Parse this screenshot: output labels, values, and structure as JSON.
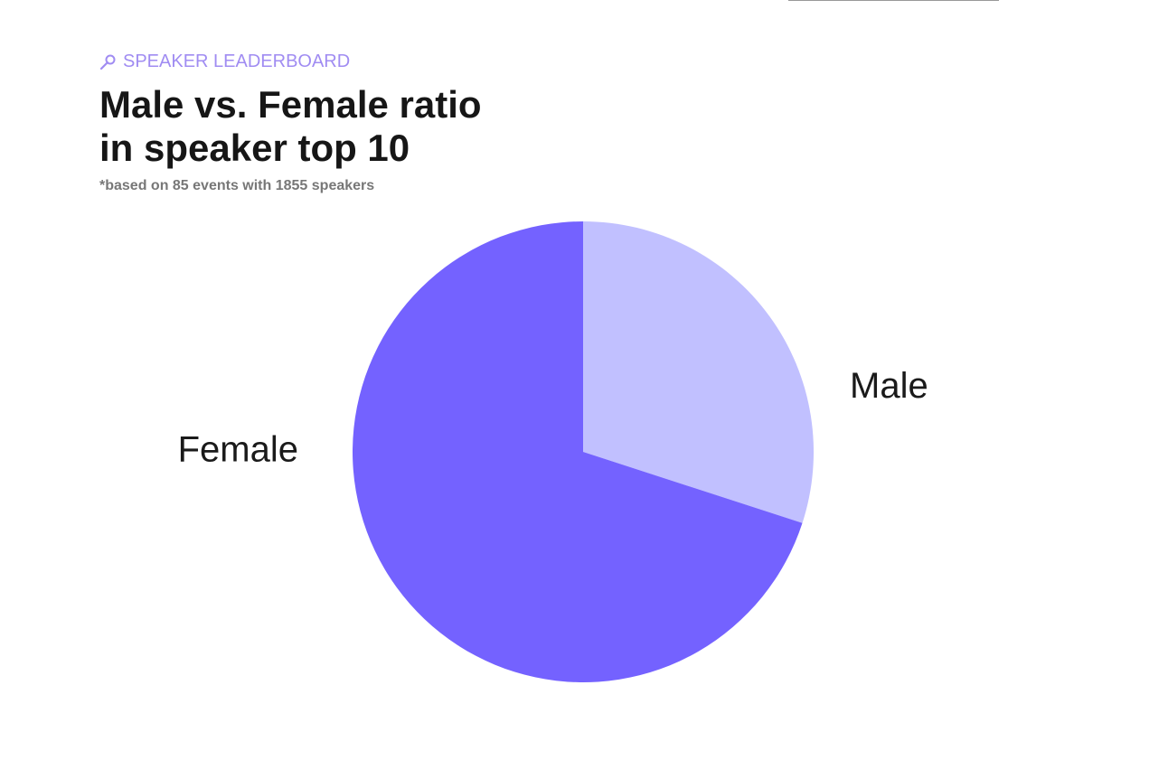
{
  "header": {
    "eyebrow": "SPEAKER LEADERBOARD",
    "title_lines": [
      "Male vs. Female ratio",
      "in speaker top 10"
    ],
    "subtitle": "*based on 85 events with 1855 speakers"
  },
  "chart_data": {
    "type": "pie",
    "categories": [
      "Male",
      "Female"
    ],
    "values": [
      30,
      70
    ],
    "colors": [
      "#c1c0ff",
      "#7462ff"
    ]
  }
}
